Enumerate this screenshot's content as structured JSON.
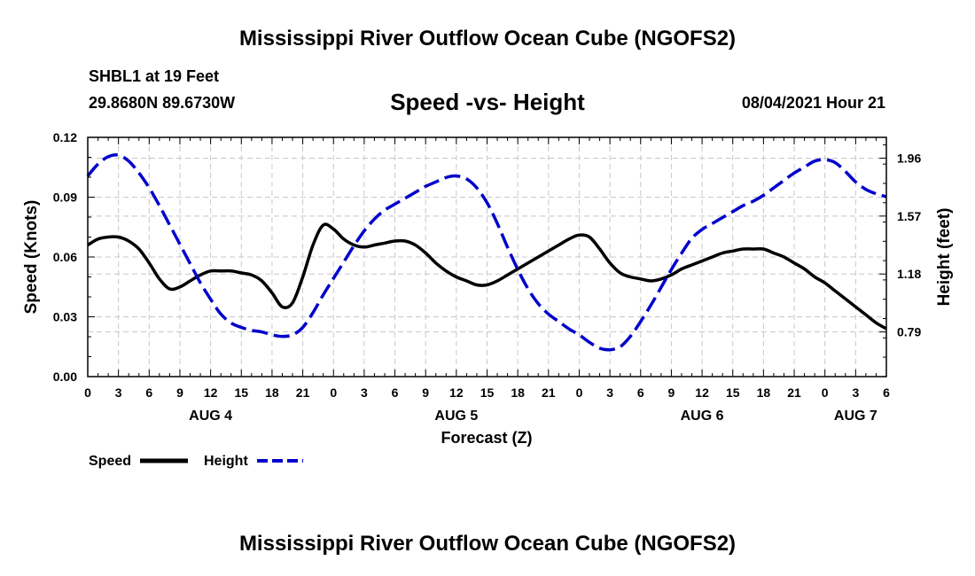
{
  "header": {
    "title": "Mississippi River Outflow Ocean Cube (NGOFS2)",
    "station": "SHBL1 at 19 Feet",
    "coordinates": "29.8680N  89.6730W",
    "subtitle": "Speed -vs- Height",
    "datestamp": "08/04/2021 Hour 21"
  },
  "footer": {
    "title": "Mississippi River Outflow Ocean Cube (NGOFS2)"
  },
  "chart_data": {
    "type": "line",
    "xlabel": "Forecast (Z)",
    "ylabel": "Speed (Knots)",
    "y2label": "Height (feet)",
    "x_range": [
      0,
      78
    ],
    "x_tick_labels": [
      "0",
      "3",
      "6",
      "9",
      "12",
      "15",
      "18",
      "21",
      "0",
      "3",
      "6",
      "9",
      "12",
      "15",
      "18",
      "21",
      "0",
      "3",
      "6",
      "9",
      "12",
      "15",
      "18",
      "21",
      "0",
      "3",
      "6"
    ],
    "day_labels": [
      {
        "label": "AUG 4",
        "hour": 12
      },
      {
        "label": "AUG 5",
        "hour": 36
      },
      {
        "label": "AUG 6",
        "hour": 60
      },
      {
        "label": "AUG 7",
        "hour": 75
      }
    ],
    "ylim": [
      0,
      0.12
    ],
    "y_tick_labels": [
      "0.00",
      "0.03",
      "0.06",
      "0.09",
      "0.12"
    ],
    "y2lim": [
      0.489,
      2.1
    ],
    "y2_tick_labels": [
      "0.79",
      "1.18",
      "1.57",
      "1.96"
    ],
    "y2_tick_values": [
      0.79,
      1.18,
      1.57,
      1.96
    ],
    "grid": true,
    "legend_position": "bottom-left",
    "series": [
      {
        "name": "Speed",
        "axis": "left",
        "color": "#000000",
        "style": "solid",
        "x": [
          0,
          1,
          2,
          3,
          4,
          5,
          6,
          7,
          8,
          9,
          10,
          11,
          12,
          13,
          14,
          15,
          16,
          17,
          18,
          19,
          20,
          21,
          22,
          23,
          24,
          25,
          26,
          27,
          28,
          29,
          30,
          31,
          32,
          33,
          34,
          35,
          36,
          37,
          38,
          39,
          40,
          41,
          42,
          43,
          44,
          45,
          46,
          47,
          48,
          49,
          50,
          51,
          52,
          53,
          54,
          55,
          56,
          57,
          58,
          59,
          60,
          61,
          62,
          63,
          64,
          65,
          66,
          67,
          68,
          69,
          70,
          71,
          72,
          73,
          74,
          75,
          76,
          77,
          78
        ],
        "values": [
          0.066,
          0.069,
          0.07,
          0.07,
          0.068,
          0.064,
          0.057,
          0.049,
          0.044,
          0.045,
          0.048,
          0.051,
          0.053,
          0.053,
          0.053,
          0.052,
          0.051,
          0.048,
          0.042,
          0.035,
          0.037,
          0.05,
          0.066,
          0.076,
          0.074,
          0.069,
          0.066,
          0.065,
          0.066,
          0.067,
          0.068,
          0.068,
          0.066,
          0.062,
          0.057,
          0.053,
          0.05,
          0.048,
          0.046,
          0.046,
          0.048,
          0.051,
          0.054,
          0.057,
          0.06,
          0.063,
          0.066,
          0.069,
          0.071,
          0.07,
          0.064,
          0.057,
          0.052,
          0.05,
          0.049,
          0.048,
          0.049,
          0.051,
          0.054,
          0.056,
          0.058,
          0.06,
          0.062,
          0.063,
          0.064,
          0.064,
          0.064,
          0.062,
          0.06,
          0.057,
          0.054,
          0.05,
          0.047,
          0.043,
          0.039,
          0.035,
          0.031,
          0.027,
          0.024
        ]
      },
      {
        "name": "Height",
        "axis": "right",
        "color": "#0000cc",
        "style": "dashed",
        "x": [
          0,
          1,
          2,
          3,
          4,
          5,
          6,
          7,
          8,
          9,
          10,
          11,
          12,
          13,
          14,
          15,
          16,
          17,
          18,
          19,
          20,
          21,
          22,
          23,
          24,
          25,
          26,
          27,
          28,
          29,
          30,
          31,
          32,
          33,
          34,
          35,
          36,
          37,
          38,
          39,
          40,
          41,
          42,
          43,
          44,
          45,
          46,
          47,
          48,
          49,
          50,
          51,
          52,
          53,
          54,
          55,
          56,
          57,
          58,
          59,
          60,
          61,
          62,
          63,
          64,
          65,
          66,
          67,
          68,
          69,
          70,
          71,
          72,
          73,
          74,
          75,
          76,
          77,
          78
        ],
        "values": [
          1.84,
          1.92,
          1.97,
          1.98,
          1.94,
          1.86,
          1.76,
          1.64,
          1.51,
          1.38,
          1.25,
          1.12,
          1.01,
          0.91,
          0.85,
          0.82,
          0.8,
          0.79,
          0.77,
          0.76,
          0.77,
          0.82,
          0.92,
          1.04,
          1.15,
          1.26,
          1.37,
          1.47,
          1.55,
          1.61,
          1.65,
          1.69,
          1.73,
          1.77,
          1.8,
          1.83,
          1.84,
          1.82,
          1.76,
          1.66,
          1.52,
          1.36,
          1.21,
          1.08,
          0.98,
          0.91,
          0.86,
          0.81,
          0.77,
          0.72,
          0.68,
          0.67,
          0.69,
          0.76,
          0.86,
          0.97,
          1.09,
          1.21,
          1.32,
          1.42,
          1.48,
          1.52,
          1.56,
          1.6,
          1.64,
          1.67,
          1.71,
          1.76,
          1.81,
          1.86,
          1.9,
          1.94,
          1.95,
          1.93,
          1.87,
          1.8,
          1.75,
          1.72,
          1.7
        ]
      }
    ]
  }
}
